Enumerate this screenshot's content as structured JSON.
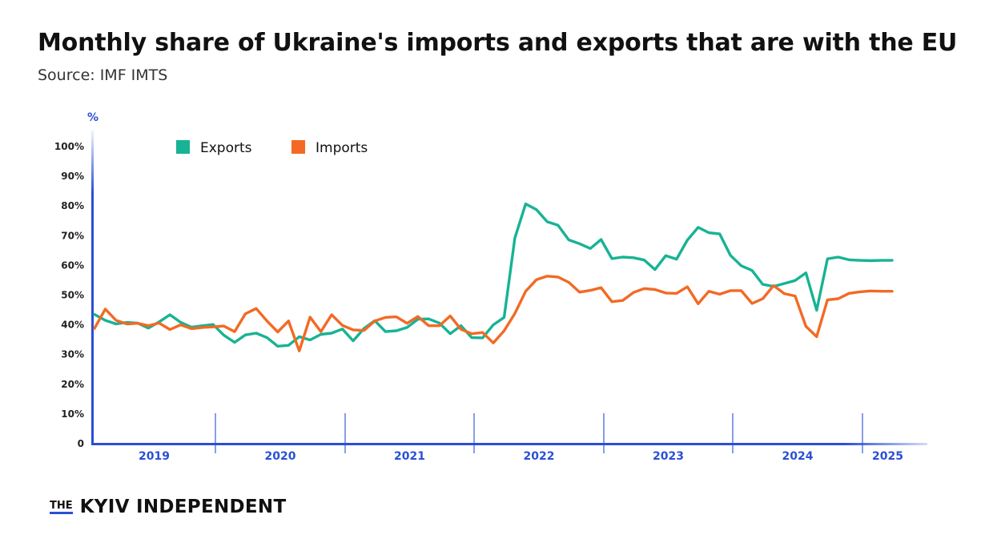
{
  "title": "Monthly share of Ukraine's imports and exports that are with the EU",
  "subtitle": "Source: IMF IMTS",
  "logo": {
    "prefix": "THE",
    "name": "KYIV INDEPENDENT"
  },
  "chart_data": {
    "type": "line",
    "title": "Monthly share of Ukraine's imports and exports that are with the EU",
    "subtitle": "Source: IMF IMTS",
    "ylabel": "%",
    "xlabel": "",
    "ylim": [
      0,
      100
    ],
    "yticks": [
      {
        "value": 0,
        "label": "0"
      },
      {
        "value": 10,
        "label": "10%"
      },
      {
        "value": 20,
        "label": "20%"
      },
      {
        "value": 30,
        "label": "30%"
      },
      {
        "value": 40,
        "label": "40%"
      },
      {
        "value": 50,
        "label": "50%"
      },
      {
        "value": 60,
        "label": "60%"
      },
      {
        "value": 70,
        "label": "70%"
      },
      {
        "value": 80,
        "label": "80%"
      },
      {
        "value": 90,
        "label": "90%"
      },
      {
        "value": 100,
        "label": "100%"
      }
    ],
    "years": [
      "2019",
      "2020",
      "2021",
      "2022",
      "2023",
      "2024",
      "2025"
    ],
    "months_per_year": 12,
    "x_start_year": 2019,
    "x_start_month": 1,
    "grid": false,
    "legend_position": "top-left",
    "colors": {
      "exports": "#17b394",
      "imports": "#f26a24",
      "axis": "#2a4fd6"
    },
    "series": [
      {
        "name": "Exports",
        "color": "#17b394",
        "values": [
          43.5,
          41.5,
          40.3,
          40.8,
          40.6,
          38.9,
          41.0,
          43.4,
          40.8,
          39.2,
          39.7,
          40.1,
          36.5,
          34.1,
          36.6,
          37.2,
          35.7,
          32.8,
          33.1,
          36.0,
          34.9,
          36.8,
          37.2,
          38.6,
          34.6,
          38.8,
          41.4,
          37.7,
          38.0,
          39.1,
          41.9,
          42.0,
          40.6,
          37.0,
          39.7,
          35.7,
          35.6,
          40.0,
          42.5,
          69.2,
          80.7,
          78.8,
          74.7,
          73.5,
          68.6,
          67.3,
          65.7,
          68.7,
          62.3,
          62.8,
          62.6,
          61.8,
          58.6,
          63.3,
          62.1,
          68.5,
          72.8,
          71.0,
          70.6,
          63.4,
          59.9,
          58.3,
          53.6,
          52.9,
          53.9,
          54.9,
          57.5,
          44.9,
          62.2,
          62.8,
          61.9,
          61.7,
          61.6,
          61.7,
          61.7
        ]
      },
      {
        "name": "Imports",
        "color": "#f26a24",
        "values": [
          38.8,
          45.3,
          41.5,
          40.3,
          40.5,
          39.7,
          40.6,
          38.4,
          40.0,
          38.7,
          39.1,
          39.3,
          39.6,
          37.7,
          43.7,
          45.5,
          41.3,
          37.6,
          41.3,
          31.2,
          42.6,
          37.7,
          43.4,
          39.8,
          38.3,
          38.1,
          41.3,
          42.5,
          42.7,
          40.5,
          42.8,
          39.7,
          39.7,
          43.0,
          38.5,
          37.0,
          37.4,
          33.9,
          38.0,
          43.8,
          51.3,
          55.2,
          56.4,
          56.1,
          54.3,
          51.0,
          51.6,
          52.5,
          47.8,
          48.2,
          50.9,
          52.2,
          51.9,
          50.7,
          50.6,
          52.8,
          47.1,
          51.3,
          50.3,
          51.5,
          51.5,
          47.2,
          48.8,
          53.2,
          50.5,
          49.7,
          39.5,
          36.0,
          48.4,
          48.8,
          50.6,
          51.1,
          51.4,
          51.3,
          51.3
        ]
      }
    ]
  }
}
